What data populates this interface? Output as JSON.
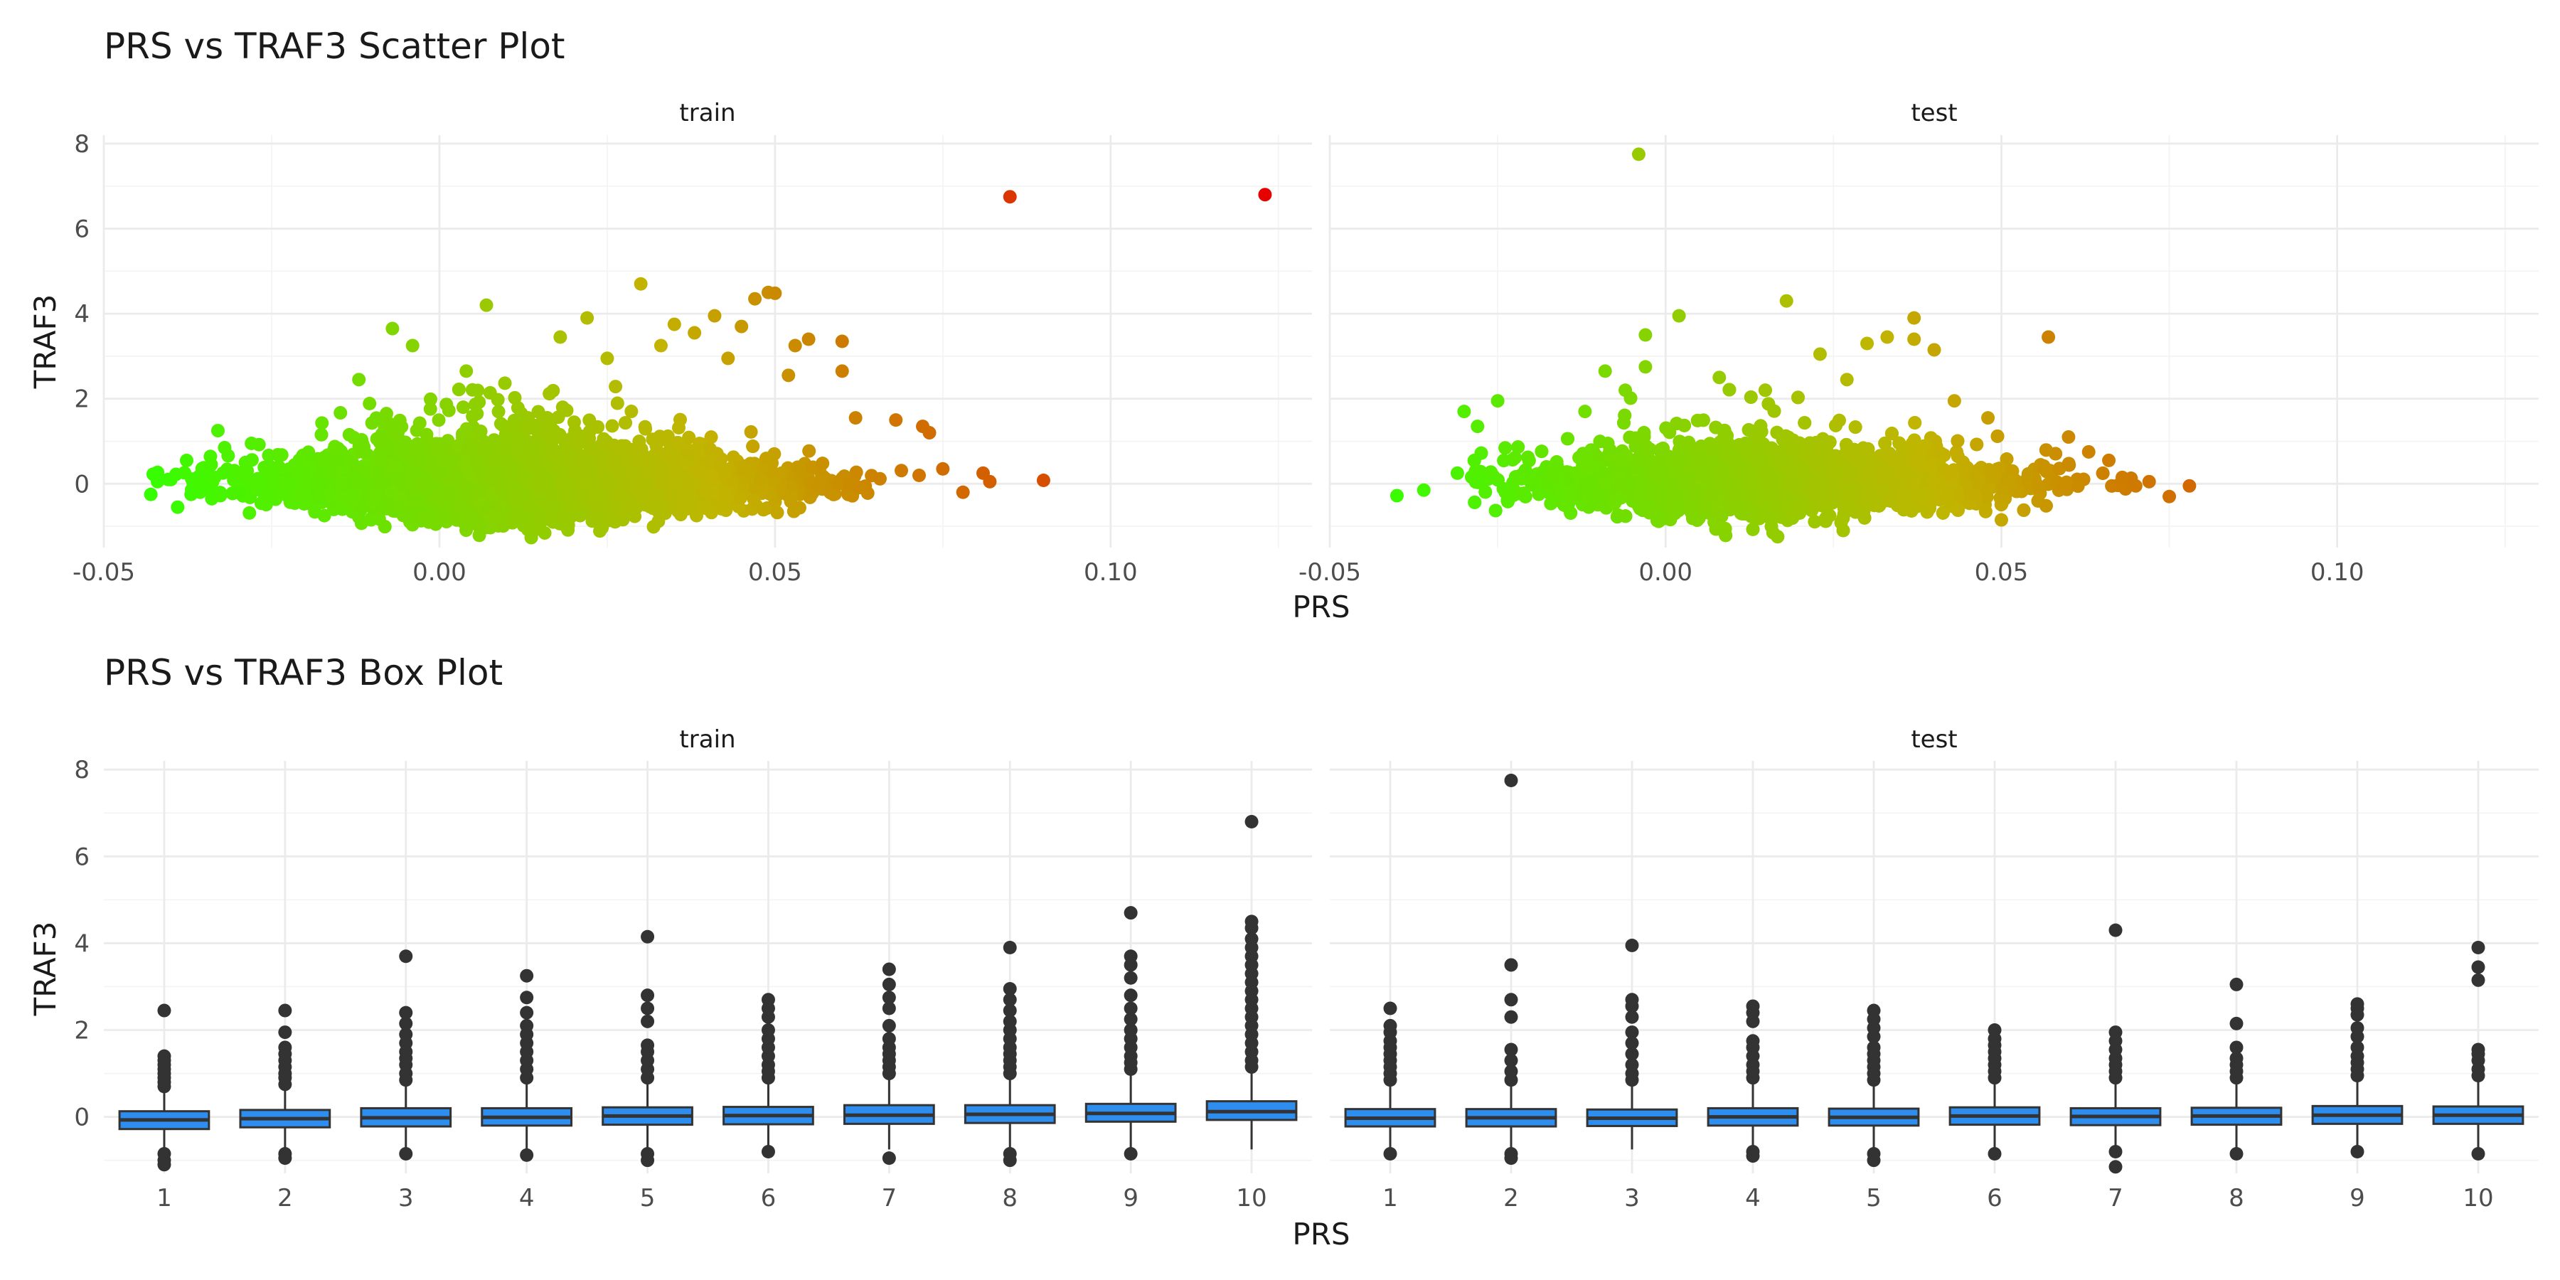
{
  "chart_data": [
    {
      "type": "scatter",
      "title": "PRS vs TRAF3 Scatter Plot",
      "xlabel": "PRS",
      "ylabel": "TRAF3",
      "xlim": [
        -0.05,
        0.13
      ],
      "ylim": [
        -1.5,
        8.2
      ],
      "xticks": [
        -0.05,
        0.0,
        0.05,
        0.1
      ],
      "xtick_labels": [
        "-0.05",
        "0.00",
        "0.05",
        "0.10"
      ],
      "yticks": [
        0,
        2,
        4,
        6,
        8
      ],
      "ytick_labels": [
        "0",
        "2",
        "4",
        "6",
        "8"
      ],
      "grid": true,
      "color_scale": {
        "low": "#33ff00",
        "mid": "#c2b400",
        "high": "#e60000"
      },
      "facets": [
        {
          "label": "train",
          "cloud": {
            "x_min": -0.043,
            "x_max": 0.08,
            "x_center": 0.012,
            "y_sd": 0.36
          },
          "outliers": [
            {
              "x": -0.043,
              "y": -0.25
            },
            {
              "x": -0.042,
              "y": 0.05
            },
            {
              "x": -0.04,
              "y": 0.1
            },
            {
              "x": -0.039,
              "y": -0.55
            },
            {
              "x": -0.037,
              "y": -0.25
            },
            {
              "x": -0.036,
              "y": 0.15
            },
            {
              "x": -0.034,
              "y": 0.45
            },
            {
              "x": -0.033,
              "y": 1.25
            },
            {
              "x": -0.032,
              "y": 0.85
            },
            {
              "x": -0.028,
              "y": 0.95
            },
            {
              "x": -0.012,
              "y": 2.45
            },
            {
              "x": -0.007,
              "y": 3.65
            },
            {
              "x": -0.004,
              "y": 3.25
            },
            {
              "x": 0.007,
              "y": 4.2
            },
            {
              "x": 0.004,
              "y": 2.65
            },
            {
              "x": 0.018,
              "y": 3.45
            },
            {
              "x": 0.022,
              "y": 3.9
            },
            {
              "x": 0.025,
              "y": 2.95
            },
            {
              "x": 0.03,
              "y": 4.7
            },
            {
              "x": 0.033,
              "y": 3.25
            },
            {
              "x": 0.035,
              "y": 3.75
            },
            {
              "x": 0.038,
              "y": 3.55
            },
            {
              "x": 0.041,
              "y": 3.95
            },
            {
              "x": 0.043,
              "y": 2.95
            },
            {
              "x": 0.045,
              "y": 3.7
            },
            {
              "x": 0.047,
              "y": 4.35
            },
            {
              "x": 0.049,
              "y": 4.5
            },
            {
              "x": 0.05,
              "y": 4.48
            },
            {
              "x": 0.052,
              "y": 2.55
            },
            {
              "x": 0.053,
              "y": 3.25
            },
            {
              "x": 0.055,
              "y": 3.4
            },
            {
              "x": 0.06,
              "y": 3.35
            },
            {
              "x": 0.06,
              "y": 2.65
            },
            {
              "x": 0.062,
              "y": 1.55
            },
            {
              "x": 0.068,
              "y": 1.5
            },
            {
              "x": 0.072,
              "y": 1.35
            },
            {
              "x": 0.073,
              "y": 1.2
            },
            {
              "x": 0.075,
              "y": 0.35
            },
            {
              "x": 0.078,
              "y": -0.2
            },
            {
              "x": 0.081,
              "y": 0.25
            },
            {
              "x": 0.082,
              "y": 0.05
            },
            {
              "x": 0.09,
              "y": 0.08
            },
            {
              "x": 0.085,
              "y": 6.75
            },
            {
              "x": 0.123,
              "y": 6.8
            }
          ]
        },
        {
          "label": "test",
          "cloud": {
            "x_min": -0.029,
            "x_max": 0.07,
            "x_center": 0.015,
            "y_sd": 0.33
          },
          "outliers": [
            {
              "x": -0.04,
              "y": -0.28
            },
            {
              "x": -0.036,
              "y": -0.15
            },
            {
              "x": -0.031,
              "y": 0.25
            },
            {
              "x": -0.03,
              "y": 1.7
            },
            {
              "x": -0.028,
              "y": 1.35
            },
            {
              "x": -0.025,
              "y": 1.95
            },
            {
              "x": -0.012,
              "y": 1.7
            },
            {
              "x": -0.009,
              "y": 2.65
            },
            {
              "x": -0.006,
              "y": 2.2
            },
            {
              "x": -0.004,
              "y": 7.75
            },
            {
              "x": -0.003,
              "y": 3.5
            },
            {
              "x": -0.003,
              "y": 2.75
            },
            {
              "x": 0.002,
              "y": 3.95
            },
            {
              "x": 0.008,
              "y": 2.5
            },
            {
              "x": 0.018,
              "y": 4.3
            },
            {
              "x": 0.023,
              "y": 3.05
            },
            {
              "x": 0.027,
              "y": 2.45
            },
            {
              "x": 0.03,
              "y": 3.3
            },
            {
              "x": 0.033,
              "y": 3.45
            },
            {
              "x": 0.037,
              "y": 3.9
            },
            {
              "x": 0.037,
              "y": 3.4
            },
            {
              "x": 0.04,
              "y": 3.15
            },
            {
              "x": 0.043,
              "y": 1.95
            },
            {
              "x": 0.048,
              "y": 1.55
            },
            {
              "x": 0.057,
              "y": 3.45
            },
            {
              "x": 0.06,
              "y": 1.1
            },
            {
              "x": 0.063,
              "y": 0.75
            },
            {
              "x": 0.066,
              "y": 0.55
            },
            {
              "x": 0.068,
              "y": 0.15
            },
            {
              "x": 0.07,
              "y": -0.05
            },
            {
              "x": 0.072,
              "y": 0.05
            },
            {
              "x": 0.075,
              "y": -0.3
            },
            {
              "x": 0.078,
              "y": -0.05
            },
            {
              "x": 0.05,
              "y": -0.85
            },
            {
              "x": 0.016,
              "y": -1.15
            }
          ]
        }
      ]
    },
    {
      "type": "box",
      "title": "PRS vs TRAF3 Box Plot",
      "xlabel": "PRS",
      "ylabel": "TRAF3",
      "categories": [
        "1",
        "2",
        "3",
        "4",
        "5",
        "6",
        "7",
        "8",
        "9",
        "10"
      ],
      "ylim": [
        -1.3,
        8.2
      ],
      "yticks": [
        0,
        2,
        4,
        6,
        8
      ],
      "ytick_labels": [
        "0",
        "2",
        "4",
        "6",
        "8"
      ],
      "box_color": "#2e8ef0",
      "grid": true,
      "facets": [
        {
          "label": "train",
          "boxes": [
            {
              "q1": -0.28,
              "median": -0.07,
              "q3": 0.13,
              "whisker_low": -0.75,
              "whisker_high": 0.6,
              "outliers_high": [
                0.7,
                0.8,
                0.9,
                1.0,
                1.1,
                1.2,
                1.3,
                1.4,
                2.45
              ],
              "outliers_low": [
                -0.85,
                -1.0,
                -1.1
              ]
            },
            {
              "q1": -0.24,
              "median": -0.04,
              "q3": 0.16,
              "whisker_low": -0.75,
              "whisker_high": 0.65,
              "outliers_high": [
                0.75,
                0.9,
                1.0,
                1.15,
                1.3,
                1.45,
                1.6,
                1.95,
                2.45
              ],
              "outliers_low": [
                -0.85,
                -0.95
              ]
            },
            {
              "q1": -0.22,
              "median": -0.02,
              "q3": 0.2,
              "whisker_low": -0.75,
              "whisker_high": 0.75,
              "outliers_high": [
                0.85,
                1.0,
                1.2,
                1.35,
                1.5,
                1.7,
                1.9,
                2.15,
                2.4,
                3.7
              ],
              "outliers_low": [
                -0.85
              ]
            },
            {
              "q1": -0.2,
              "median": -0.01,
              "q3": 0.2,
              "whisker_low": -0.75,
              "whisker_high": 0.8,
              "outliers_high": [
                0.9,
                1.1,
                1.3,
                1.5,
                1.7,
                1.9,
                2.1,
                2.4,
                2.75,
                3.25
              ],
              "outliers_low": [
                -0.88
              ]
            },
            {
              "q1": -0.18,
              "median": 0.02,
              "q3": 0.22,
              "whisker_low": -0.75,
              "whisker_high": 0.8,
              "outliers_high": [
                0.9,
                1.1,
                1.3,
                1.5,
                1.65,
                2.2,
                2.5,
                2.8,
                4.15
              ],
              "outliers_low": [
                -0.85,
                -1.0
              ]
            },
            {
              "q1": -0.17,
              "median": 0.03,
              "q3": 0.23,
              "whisker_low": -0.75,
              "whisker_high": 0.8,
              "outliers_high": [
                0.9,
                1.05,
                1.2,
                1.4,
                1.6,
                1.8,
                2.0,
                2.3,
                2.5,
                2.7
              ],
              "outliers_low": [
                -0.8
              ]
            },
            {
              "q1": -0.16,
              "median": 0.04,
              "q3": 0.27,
              "whisker_low": -0.75,
              "whisker_high": 0.9,
              "outliers_high": [
                1.0,
                1.15,
                1.3,
                1.45,
                1.6,
                1.8,
                2.1,
                2.5,
                2.75,
                3.05,
                3.4
              ],
              "outliers_low": [
                -0.95
              ]
            },
            {
              "q1": -0.14,
              "median": 0.06,
              "q3": 0.27,
              "whisker_low": -0.75,
              "whisker_high": 0.9,
              "outliers_high": [
                1.0,
                1.15,
                1.3,
                1.45,
                1.6,
                1.8,
                2.0,
                2.2,
                2.45,
                2.7,
                2.95,
                3.9
              ],
              "outliers_low": [
                -0.85,
                -1.0
              ]
            },
            {
              "q1": -0.11,
              "median": 0.08,
              "q3": 0.3,
              "whisker_low": -0.75,
              "whisker_high": 1.0,
              "outliers_high": [
                1.1,
                1.25,
                1.4,
                1.6,
                1.8,
                2.0,
                2.25,
                2.5,
                2.8,
                3.2,
                3.5,
                3.7,
                4.7
              ],
              "outliers_low": [
                -0.85
              ]
            },
            {
              "q1": -0.07,
              "median": 0.12,
              "q3": 0.36,
              "whisker_low": -0.75,
              "whisker_high": 1.05,
              "outliers_high": [
                1.15,
                1.3,
                1.5,
                1.7,
                1.9,
                2.1,
                2.3,
                2.5,
                2.7,
                2.9,
                3.1,
                3.3,
                3.5,
                3.7,
                3.9,
                4.1,
                4.35,
                4.5,
                6.8
              ],
              "outliers_low": []
            }
          ]
        },
        {
          "label": "test",
          "boxes": [
            {
              "q1": -0.22,
              "median": -0.03,
              "q3": 0.18,
              "whisker_low": -0.75,
              "whisker_high": 0.75,
              "outliers_high": [
                0.85,
                1.0,
                1.15,
                1.3,
                1.45,
                1.6,
                1.75,
                1.95,
                2.1,
                2.5
              ],
              "outliers_low": [
                -0.85
              ]
            },
            {
              "q1": -0.22,
              "median": -0.02,
              "q3": 0.18,
              "whisker_low": -0.75,
              "whisker_high": 0.75,
              "outliers_high": [
                0.85,
                1.05,
                1.3,
                1.55,
                2.3,
                2.7,
                3.5,
                7.75
              ],
              "outliers_low": [
                -0.85,
                -0.95
              ]
            },
            {
              "q1": -0.21,
              "median": -0.03,
              "q3": 0.17,
              "whisker_low": -0.75,
              "whisker_high": 0.75,
              "outliers_high": [
                0.85,
                1.0,
                1.2,
                1.45,
                1.7,
                1.95,
                2.3,
                2.55,
                2.7,
                3.95
              ],
              "outliers_low": []
            },
            {
              "q1": -0.2,
              "median": 0.0,
              "q3": 0.2,
              "whisker_low": -0.75,
              "whisker_high": 0.8,
              "outliers_high": [
                0.9,
                1.05,
                1.2,
                1.4,
                1.6,
                1.75,
                2.2,
                2.4,
                2.55
              ],
              "outliers_low": [
                -0.8,
                -0.9
              ]
            },
            {
              "q1": -0.2,
              "median": -0.01,
              "q3": 0.19,
              "whisker_low": -0.75,
              "whisker_high": 0.75,
              "outliers_high": [
                0.85,
                1.0,
                1.15,
                1.3,
                1.45,
                1.6,
                1.85,
                2.05,
                2.25,
                2.45
              ],
              "outliers_low": [
                -0.85,
                -1.0
              ]
            },
            {
              "q1": -0.18,
              "median": 0.02,
              "q3": 0.22,
              "whisker_low": -0.75,
              "whisker_high": 0.8,
              "outliers_high": [
                0.9,
                1.05,
                1.2,
                1.35,
                1.5,
                1.65,
                1.8,
                2.0
              ],
              "outliers_low": [
                -0.85
              ]
            },
            {
              "q1": -0.19,
              "median": 0.01,
              "q3": 0.2,
              "whisker_low": -0.75,
              "whisker_high": 0.8,
              "outliers_high": [
                0.9,
                1.05,
                1.2,
                1.35,
                1.55,
                1.75,
                1.95,
                4.3
              ],
              "outliers_low": [
                -0.8,
                -1.15
              ]
            },
            {
              "q1": -0.18,
              "median": 0.02,
              "q3": 0.21,
              "whisker_low": -0.75,
              "whisker_high": 0.8,
              "outliers_high": [
                0.9,
                1.05,
                1.2,
                1.35,
                1.6,
                2.15,
                3.05
              ],
              "outliers_low": [
                -0.85
              ]
            },
            {
              "q1": -0.16,
              "median": 0.04,
              "q3": 0.25,
              "whisker_low": -0.75,
              "whisker_high": 0.85,
              "outliers_high": [
                0.95,
                1.1,
                1.25,
                1.4,
                1.6,
                1.85,
                2.05,
                2.35,
                2.5,
                2.6
              ],
              "outliers_low": [
                -0.8
              ]
            },
            {
              "q1": -0.16,
              "median": 0.04,
              "q3": 0.24,
              "whisker_low": -0.75,
              "whisker_high": 0.85,
              "outliers_high": [
                0.95,
                1.1,
                1.3,
                1.45,
                1.55,
                3.15,
                3.45,
                3.9
              ],
              "outliers_low": [
                -0.85
              ]
            }
          ]
        }
      ]
    }
  ]
}
